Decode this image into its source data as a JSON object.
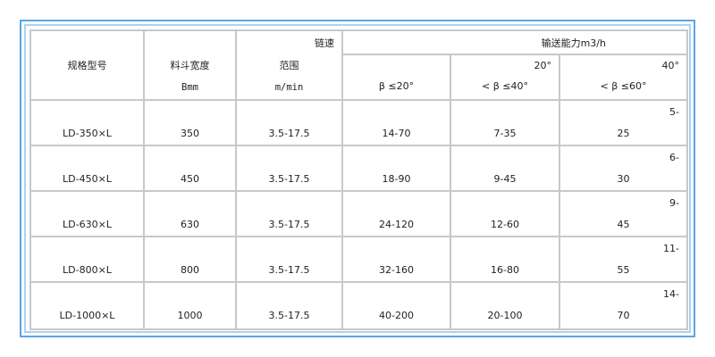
{
  "header": {
    "model": "规格型号",
    "hopper_width": "料斗宽度",
    "hopper_width_unit": "Bmm",
    "chain_speed": "链速",
    "range": "范围",
    "range_unit": "m/min",
    "capacity": "输送能力m3/h",
    "angle1": "β ≤20°",
    "angle2_top": "20°",
    "angle2": "< β ≤40°",
    "angle3_top": "40°",
    "angle3": "< β ≤60°"
  },
  "rows": [
    {
      "model": "LD-350×L",
      "width": "350",
      "speed": "3.5-17.5",
      "cap1": "14-70",
      "cap2": "7-35",
      "cap3_top": "5-",
      "cap3": "25"
    },
    {
      "model": "LD-450×L",
      "width": "450",
      "speed": "3.5-17.5",
      "cap1": "18-90",
      "cap2": "9-45",
      "cap3_top": "6-",
      "cap3": "30"
    },
    {
      "model": "LD-630×L",
      "width": "630",
      "speed": "3.5-17.5",
      "cap1": "24-120",
      "cap2": "12-60",
      "cap3_top": "9-",
      "cap3": "45"
    },
    {
      "model": "LD-800×L",
      "width": "800",
      "speed": "3.5-17.5",
      "cap1": "32-160",
      "cap2": "16-80",
      "cap3_top": "11-",
      "cap3": "55"
    },
    {
      "model": "LD-1000×L",
      "width": "1000",
      "speed": "3.5-17.5",
      "cap1": "40-200",
      "cap2": "20-100",
      "cap3_top": "14-",
      "cap3": "70"
    }
  ],
  "colors": {
    "frame": "#5aa6e6",
    "frame_inner": "#a9d1f3",
    "grid": "#c8c8c8"
  }
}
